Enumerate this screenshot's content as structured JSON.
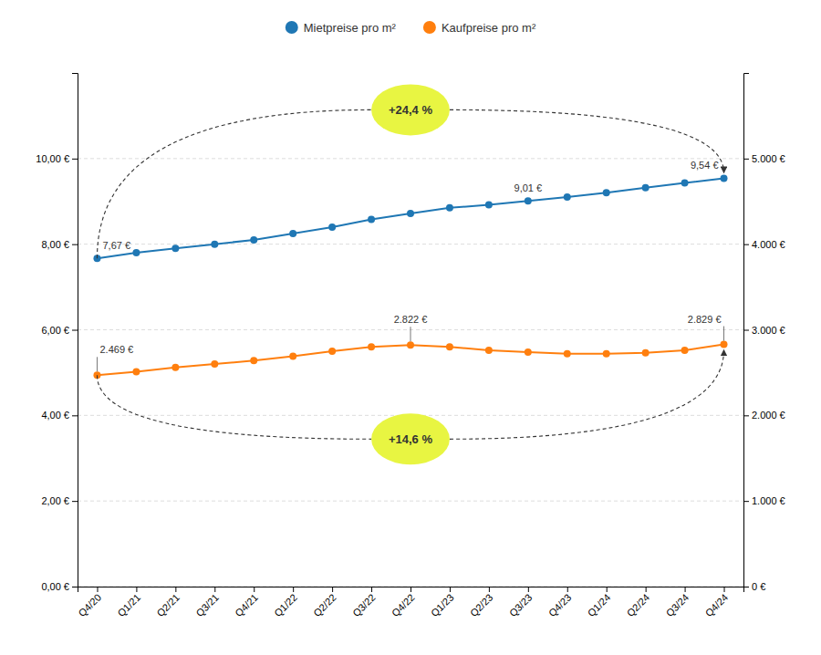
{
  "chart_data": {
    "type": "line",
    "categories": [
      "Q4/20",
      "Q1/21",
      "Q2/21",
      "Q3/21",
      "Q4/21",
      "Q1/22",
      "Q2/22",
      "Q3/22",
      "Q4/22",
      "Q1/23",
      "Q2/23",
      "Q3/23",
      "Q4/23",
      "Q1/24",
      "Q2/24",
      "Q3/24",
      "Q4/24"
    ],
    "series": [
      {
        "name": "Mietpreise pro m²",
        "values": [
          7.67,
          7.8,
          7.9,
          8.0,
          8.1,
          8.25,
          8.4,
          8.58,
          8.72,
          8.85,
          8.92,
          9.01,
          9.1,
          9.2,
          9.32,
          9.43,
          9.54
        ],
        "value_labels": [
          "7,67 €",
          null,
          null,
          null,
          null,
          null,
          null,
          null,
          null,
          null,
          null,
          "9,01 €",
          null,
          null,
          null,
          null,
          "9,54 €"
        ],
        "marker": "circle"
      },
      {
        "name": "Kaufpreise pro m²",
        "axis": "y2",
        "values": [
          2469,
          2510,
          2560,
          2600,
          2640,
          2690,
          2750,
          2800,
          2822,
          2800,
          2760,
          2740,
          2720,
          2720,
          2730,
          2760,
          2829
        ],
        "value_labels": [
          "2.469 €",
          null,
          null,
          null,
          null,
          null,
          null,
          null,
          "2.822 €",
          null,
          null,
          null,
          null,
          null,
          null,
          null,
          "2.829 €"
        ],
        "marker": "circle"
      }
    ],
    "ylim": [
      0,
      12
    ],
    "yticks": [
      {
        "value": 0,
        "label": "0,00 €"
      },
      {
        "value": 2,
        "label": "2,00 €"
      },
      {
        "value": 4,
        "label": "4,00 €"
      },
      {
        "value": 6,
        "label": "6,00 €"
      },
      {
        "value": 8,
        "label": "8,00 €"
      },
      {
        "value": 10,
        "label": "10,00 €"
      }
    ],
    "y2lim": [
      0,
      6000
    ],
    "y2ticks": [
      {
        "value": 0,
        "label": "0 €"
      },
      {
        "value": 1000,
        "label": "1.000 €"
      },
      {
        "value": 2000,
        "label": "2.000 €"
      },
      {
        "value": 3000,
        "label": "3.000 €"
      },
      {
        "value": 4000,
        "label": "4.000 €"
      },
      {
        "value": 5000,
        "label": "5.000 €"
      }
    ],
    "annotations": [
      "+24,4 %",
      "+14,6 %"
    ],
    "grid": true,
    "legend": "top",
    "data_labels": true
  }
}
